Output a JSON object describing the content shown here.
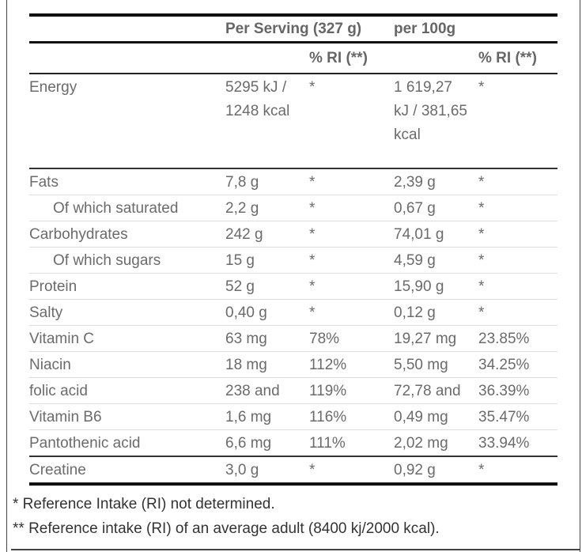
{
  "header": {
    "per_serving": "Per Serving (327 g)",
    "per_100g": "per 100g",
    "ri_serving": "% RI (**)",
    "ri_100g": "% RI (**)"
  },
  "rows": [
    {
      "name": "Energy",
      "serving": "5295 kJ / 1248 kcal",
      "ri": "*",
      "per100": "1 619,27 kJ / 381,65 kcal",
      "ri100": "*"
    },
    {
      "name": "Fats",
      "serving": "7,8 g",
      "ri": "*",
      "per100": "2,39 g",
      "ri100": "*"
    },
    {
      "name": "Of which saturated",
      "serving": "2,2 g",
      "ri": "*",
      "per100": "0,67 g",
      "ri100": "*",
      "indent": true
    },
    {
      "name": "Carbohydrates",
      "serving": "242 g",
      "ri": "*",
      "per100": "74,01 g",
      "ri100": "*"
    },
    {
      "name": "Of which sugars",
      "serving": "15 g",
      "ri": "*",
      "per100": "4,59 g",
      "ri100": "*",
      "indent": true
    },
    {
      "name": "Protein",
      "serving": "52 g",
      "ri": "*",
      "per100": "15,90 g",
      "ri100": "*"
    },
    {
      "name": "Salty",
      "serving": "0,40 g",
      "ri": "*",
      "per100": "0,12 g",
      "ri100": "*"
    },
    {
      "name": "Vitamin C",
      "serving": "63 mg",
      "ri": "78%",
      "per100": "19,27 mg",
      "ri100": "23.85%"
    },
    {
      "name": "Niacin",
      "serving": "18 mg",
      "ri": "112%",
      "per100": "5,50 mg",
      "ri100": "34.25%"
    },
    {
      "name": "folic acid",
      "serving": "238 and",
      "ri": "119%",
      "per100": "72,78 and",
      "ri100": "36.39%"
    },
    {
      "name": "Vitamin B6",
      "serving": "1,6 mg",
      "ri": "116%",
      "per100": "0,49 mg",
      "ri100": "35.47%"
    },
    {
      "name": "Pantothenic acid",
      "serving": "6,6 mg",
      "ri": "111%",
      "per100": "2,02 mg",
      "ri100": "33.94%"
    },
    {
      "name": "Creatine",
      "serving": "3,0 g",
      "ri": "*",
      "per100": "0,92 g",
      "ri100": "*"
    }
  ],
  "footnotes": {
    "note1": "* Reference Intake (RI) not determined.",
    "note2": "** Reference intake (RI) of an average adult (8400 kj/2000 kcal)."
  }
}
